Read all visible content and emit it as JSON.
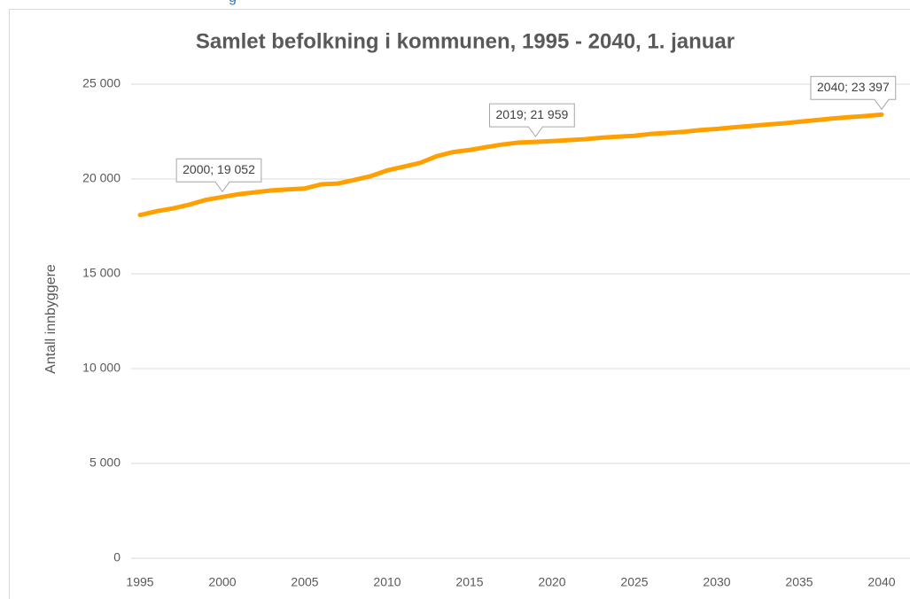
{
  "header_fragment": "g",
  "chart_data": {
    "type": "line",
    "title": "Samlet befolkning i kommunen, 1995 - 2040, 1. januar",
    "y_label": "Antall innbyggere",
    "x": [
      1995,
      1996,
      1997,
      1998,
      1999,
      2000,
      2001,
      2002,
      2003,
      2004,
      2005,
      2006,
      2007,
      2008,
      2009,
      2010,
      2011,
      2012,
      2013,
      2014,
      2015,
      2016,
      2017,
      2018,
      2019,
      2020,
      2021,
      2022,
      2023,
      2024,
      2025,
      2026,
      2027,
      2028,
      2029,
      2030,
      2031,
      2032,
      2033,
      2034,
      2035,
      2036,
      2037,
      2038,
      2039,
      2040
    ],
    "series": [
      {
        "name": "Samlet befolkning",
        "color": "#ffa000",
        "values": [
          18100,
          18300,
          18450,
          18650,
          18900,
          19052,
          19200,
          19300,
          19400,
          19450,
          19500,
          19720,
          19760,
          19950,
          20150,
          20450,
          20650,
          20850,
          21200,
          21420,
          21530,
          21680,
          21820,
          21920,
          21959,
          22000,
          22050,
          22100,
          22180,
          22230,
          22280,
          22380,
          22430,
          22490,
          22580,
          22640,
          22720,
          22790,
          22870,
          22930,
          23020,
          23100,
          23190,
          23260,
          23320,
          23397
        ],
        "value_labels": [
          null,
          null,
          null,
          null,
          null,
          "2000; 19 052",
          null,
          null,
          null,
          null,
          null,
          null,
          null,
          null,
          null,
          null,
          null,
          null,
          null,
          null,
          null,
          null,
          null,
          null,
          "2019; 21 959",
          null,
          null,
          null,
          null,
          null,
          null,
          null,
          null,
          null,
          null,
          null,
          null,
          null,
          null,
          null,
          null,
          null,
          null,
          null,
          null,
          "2040; 23 397"
        ]
      }
    ],
    "xlim": [
      1995,
      2040
    ],
    "xticks": [
      1995,
      2000,
      2005,
      2010,
      2015,
      2020,
      2025,
      2030,
      2035,
      2040
    ],
    "ylim": [
      0,
      25000
    ],
    "yticks": [
      0,
      {
        "value": 5000,
        "label": "5 000"
      },
      {
        "value": 10000,
        "label": "10 000"
      },
      {
        "value": 15000,
        "label": "15 000"
      },
      {
        "value": 20000,
        "label": "20 000"
      },
      {
        "value": 25000,
        "label": "25 000"
      }
    ],
    "grid": true
  }
}
